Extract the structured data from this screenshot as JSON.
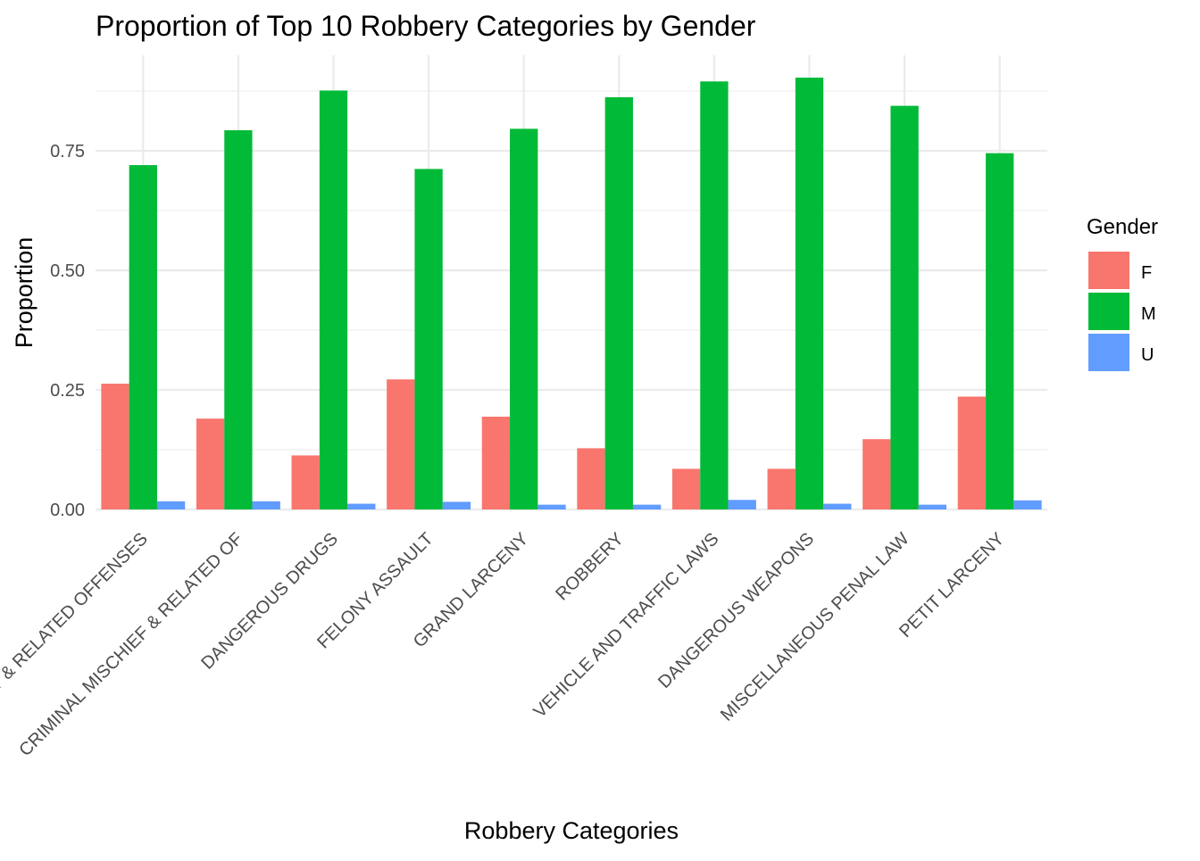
{
  "chart_data": {
    "type": "bar",
    "title": "Proportion of Top 10 Robbery Categories by Gender",
    "xlabel": "Robbery Categories",
    "ylabel": "Proportion",
    "ylim": [
      0,
      0.9
    ],
    "yticks": [
      0.0,
      0.25,
      0.5,
      0.75
    ],
    "ytick_labels": [
      "0.00",
      "0.25",
      "0.50",
      "0.75"
    ],
    "grid": true,
    "legend": {
      "title": "Gender",
      "position": "right"
    },
    "categories": [
      "BURGLARY & RELATED OFFENSES",
      "CRIMINAL MISCHIEF & RELATED OF",
      "DANGEROUS DRUGS",
      "FELONY ASSAULT",
      "GRAND LARCENY",
      "ROBBERY",
      "VEHICLE AND TRAFFIC LAWS",
      "DANGEROUS WEAPONS",
      "MISCELLANEOUS PENAL LAW",
      "PETIT LARCENY"
    ],
    "series": [
      {
        "name": "F",
        "color": "#F8766D",
        "values": [
          0.263,
          0.19,
          0.113,
          0.272,
          0.194,
          0.128,
          0.085,
          0.085,
          0.147,
          0.236
        ]
      },
      {
        "name": "M",
        "color": "#00BA38",
        "values": [
          0.72,
          0.793,
          0.876,
          0.712,
          0.796,
          0.862,
          0.895,
          0.903,
          0.844,
          0.745
        ]
      },
      {
        "name": "U",
        "color": "#619CFF",
        "values": [
          0.017,
          0.017,
          0.012,
          0.016,
          0.01,
          0.01,
          0.02,
          0.012,
          0.01,
          0.019
        ]
      }
    ]
  }
}
